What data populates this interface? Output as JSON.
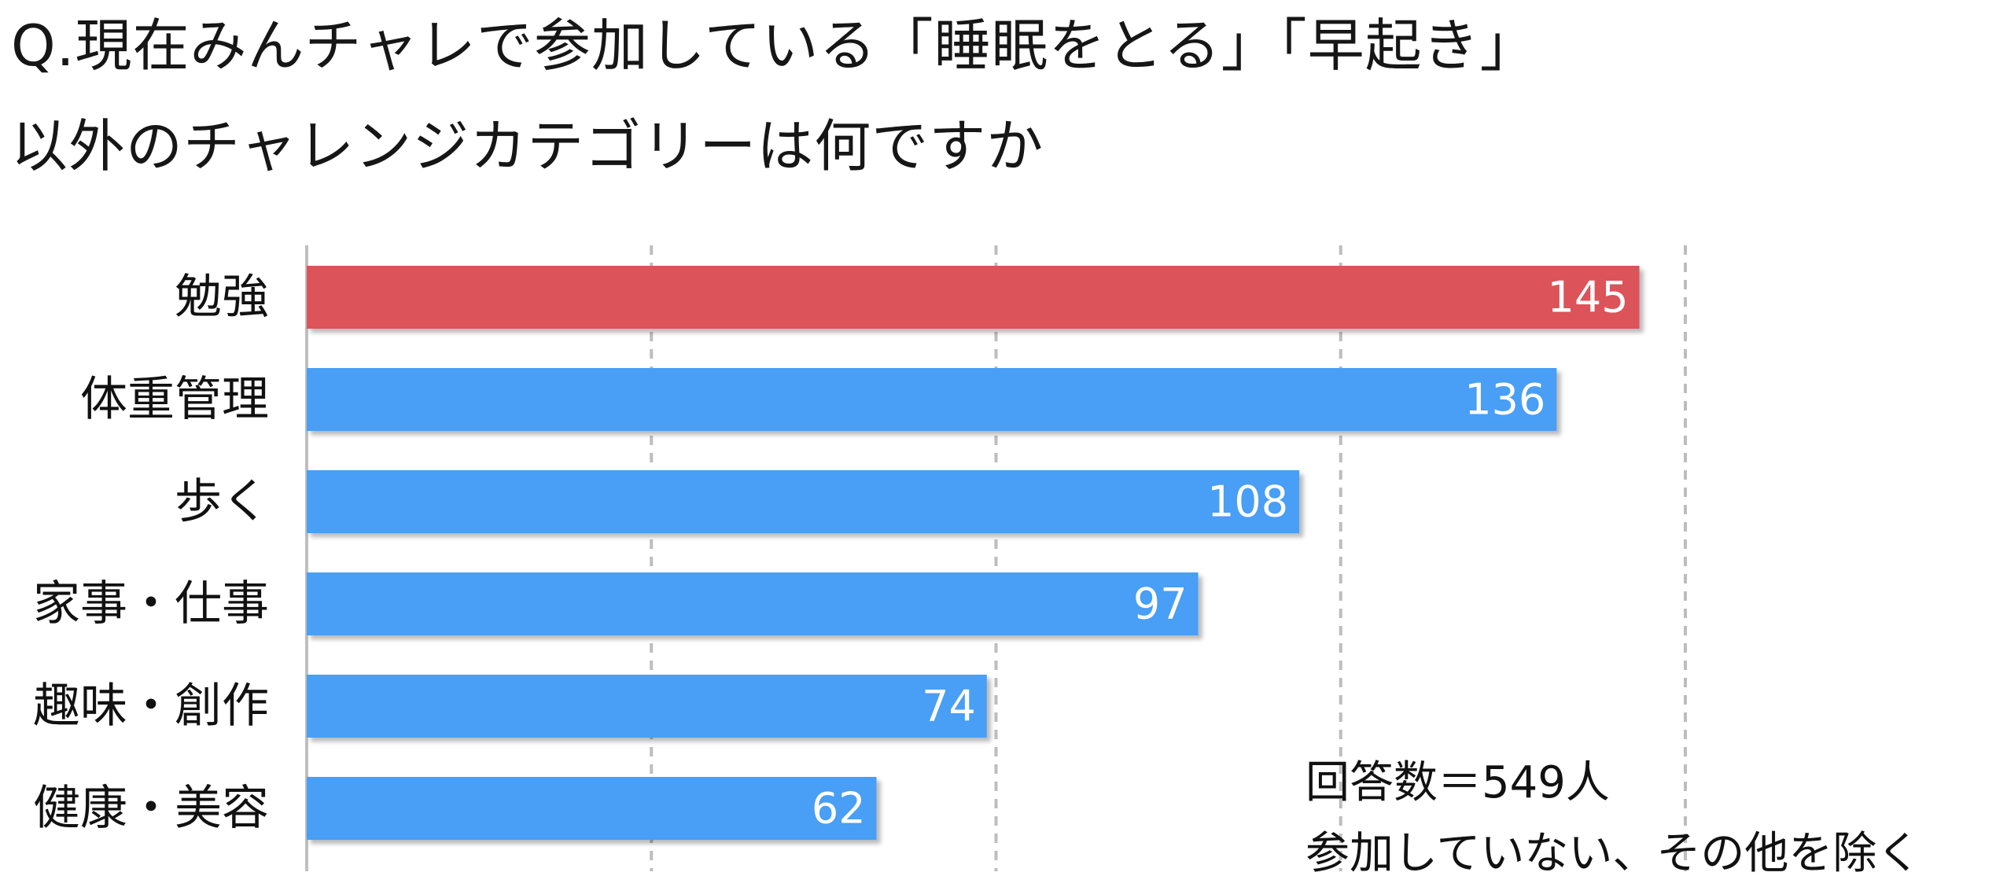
{
  "title_lines": [
    "Q.現在みんチャレで参加している「睡眠をとる」「早起き」",
    "以外のチャレンジカテゴリーは何ですか"
  ],
  "notes": [
    "回答数＝549人",
    "参加していない、その他を除く"
  ],
  "colors": {
    "highlight_bar": "#DC525A",
    "bar": "#4A9EF5",
    "grid": "#BDBDBD",
    "axis": "#BFBFBF"
  },
  "chart_data": {
    "type": "bar",
    "orientation": "horizontal",
    "title": "Q.現在みんチャレで参加している「睡眠をとる」「早起き」以外のチャレンジカテゴリーは何ですか",
    "xlabel": "",
    "ylabel": "",
    "categories": [
      "勉強",
      "体重管理",
      "歩く",
      "家事・仕事",
      "趣味・創作",
      "健康・美容"
    ],
    "values": [
      145,
      136,
      108,
      97,
      74,
      62
    ],
    "highlight_index": 0,
    "xlim": [
      0,
      150
    ],
    "gridlines": [
      37.5,
      75,
      112.5,
      150
    ],
    "grid": true,
    "legend": "none"
  }
}
